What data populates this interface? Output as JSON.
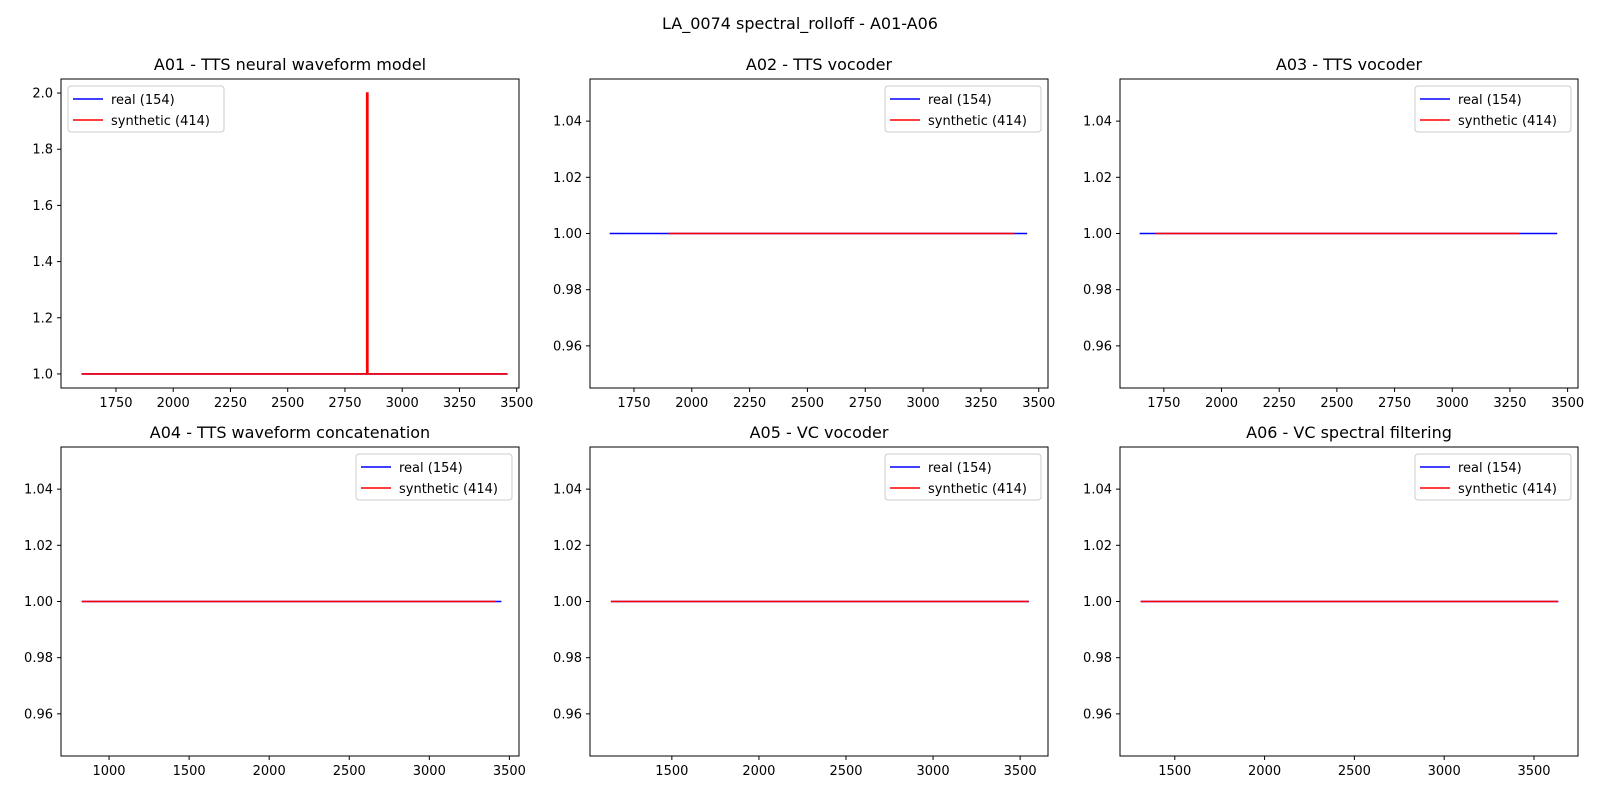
{
  "figure": {
    "suptitle": "LA_0074 spectral_rolloff - A01-A06"
  },
  "colors": {
    "real": "#0000ff",
    "synthetic": "#ff0000",
    "axes": "#000000",
    "background": "#ffffff"
  },
  "chart_data": [
    {
      "type": "line",
      "title": "A01 - TTS neural waveform model",
      "xlim": [
        1510,
        3510
      ],
      "ylim": [
        0.95,
        2.05
      ],
      "xticks": [
        1750,
        2000,
        2250,
        2500,
        2750,
        3000,
        3250,
        3500
      ],
      "xtick_labels": [
        "1750",
        "2000",
        "2250",
        "2500",
        "2750",
        "3000",
        "3250",
        "3500"
      ],
      "yticks": [
        1.0,
        1.2,
        1.4,
        1.6,
        1.8,
        2.0
      ],
      "ytick_labels": [
        "1.0",
        "1.2",
        "1.4",
        "1.6",
        "1.8",
        "2.0"
      ],
      "legend": "upper left",
      "series": [
        {
          "name": "real (154)",
          "color": "#0000ff",
          "x": [
            1600,
            3460
          ],
          "y": [
            1,
            1
          ]
        },
        {
          "name": "synthetic (414)",
          "color": "#ff0000",
          "x": [
            1600,
            2845,
            2845,
            2850,
            2850,
            3460
          ],
          "y": [
            1,
            1,
            2,
            2,
            1,
            1
          ]
        }
      ]
    },
    {
      "type": "line",
      "title": "A02 - TTS vocoder",
      "xlim": [
        1560,
        3540
      ],
      "ylim": [
        0.945,
        1.055
      ],
      "xticks": [
        1750,
        2000,
        2250,
        2500,
        2750,
        3000,
        3250,
        3500
      ],
      "xtick_labels": [
        "1750",
        "2000",
        "2250",
        "2500",
        "2750",
        "3000",
        "3250",
        "3500"
      ],
      "yticks": [
        0.96,
        0.98,
        1.0,
        1.02,
        1.04
      ],
      "ytick_labels": [
        "0.96",
        "0.98",
        "1.00",
        "1.02",
        "1.04"
      ],
      "legend": "upper right",
      "series": [
        {
          "name": "real (154)",
          "color": "#0000ff",
          "x": [
            1645,
            3450
          ],
          "y": [
            1,
            1
          ]
        },
        {
          "name": "synthetic (414)",
          "color": "#ff0000",
          "x": [
            1900,
            3395
          ],
          "y": [
            1,
            1
          ]
        }
      ]
    },
    {
      "type": "line",
      "title": "A03 - TTS vocoder",
      "xlim": [
        1560,
        3545
      ],
      "ylim": [
        0.945,
        1.055
      ],
      "xticks": [
        1750,
        2000,
        2250,
        2500,
        2750,
        3000,
        3250,
        3500
      ],
      "xtick_labels": [
        "1750",
        "2000",
        "2250",
        "2500",
        "2750",
        "3000",
        "3250",
        "3500"
      ],
      "yticks": [
        0.96,
        0.98,
        1.0,
        1.02,
        1.04
      ],
      "ytick_labels": [
        "0.96",
        "0.98",
        "1.00",
        "1.02",
        "1.04"
      ],
      "legend": "upper right",
      "series": [
        {
          "name": "real (154)",
          "color": "#0000ff",
          "x": [
            1645,
            3455
          ],
          "y": [
            1,
            1
          ]
        },
        {
          "name": "synthetic (414)",
          "color": "#ff0000",
          "x": [
            1715,
            3290
          ],
          "y": [
            1,
            1
          ]
        }
      ]
    },
    {
      "type": "line",
      "title": "A04 - TTS waveform concatenation",
      "xlim": [
        700,
        3560
      ],
      "ylim": [
        0.945,
        1.055
      ],
      "xticks": [
        1000,
        1500,
        2000,
        2500,
        3000,
        3500
      ],
      "xtick_labels": [
        "1000",
        "1500",
        "2000",
        "2500",
        "3000",
        "3500"
      ],
      "yticks": [
        0.96,
        0.98,
        1.0,
        1.02,
        1.04
      ],
      "ytick_labels": [
        "0.96",
        "0.98",
        "1.00",
        "1.02",
        "1.04"
      ],
      "legend": "upper right",
      "series": [
        {
          "name": "real (154)",
          "color": "#0000ff",
          "x": [
            830,
            3450
          ],
          "y": [
            1,
            1
          ]
        },
        {
          "name": "synthetic (414)",
          "color": "#ff0000",
          "x": [
            830,
            3415
          ],
          "y": [
            1,
            1
          ]
        }
      ]
    },
    {
      "type": "line",
      "title": "A05 - VC vocoder",
      "xlim": [
        1030,
        3660
      ],
      "ylim": [
        0.945,
        1.055
      ],
      "xticks": [
        1500,
        2000,
        2500,
        3000,
        3500
      ],
      "xtick_labels": [
        "1500",
        "2000",
        "2500",
        "3000",
        "3500"
      ],
      "yticks": [
        0.96,
        0.98,
        1.0,
        1.02,
        1.04
      ],
      "ytick_labels": [
        "0.96",
        "0.98",
        "1.00",
        "1.02",
        "1.04"
      ],
      "legend": "upper right",
      "series": [
        {
          "name": "real (154)",
          "color": "#0000ff",
          "x": [
            1150,
            3550
          ],
          "y": [
            1,
            1
          ]
        },
        {
          "name": "synthetic (414)",
          "color": "#ff0000",
          "x": [
            1150,
            3550
          ],
          "y": [
            1,
            1
          ]
        }
      ]
    },
    {
      "type": "line",
      "title": "A06 - VC spectral filtering",
      "xlim": [
        1195,
        3745
      ],
      "ylim": [
        0.945,
        1.055
      ],
      "xticks": [
        1500,
        2000,
        2500,
        3000,
        3500
      ],
      "xtick_labels": [
        "1500",
        "2000",
        "2500",
        "3000",
        "3500"
      ],
      "yticks": [
        0.96,
        0.98,
        1.0,
        1.02,
        1.04
      ],
      "ytick_labels": [
        "0.96",
        "0.98",
        "1.00",
        "1.02",
        "1.04"
      ],
      "legend": "upper right",
      "series": [
        {
          "name": "real (154)",
          "color": "#0000ff",
          "x": [
            1310,
            3635
          ],
          "y": [
            1,
            1
          ]
        },
        {
          "name": "synthetic (414)",
          "color": "#ff0000",
          "x": [
            1310,
            3635
          ],
          "y": [
            1,
            1
          ]
        }
      ]
    }
  ]
}
